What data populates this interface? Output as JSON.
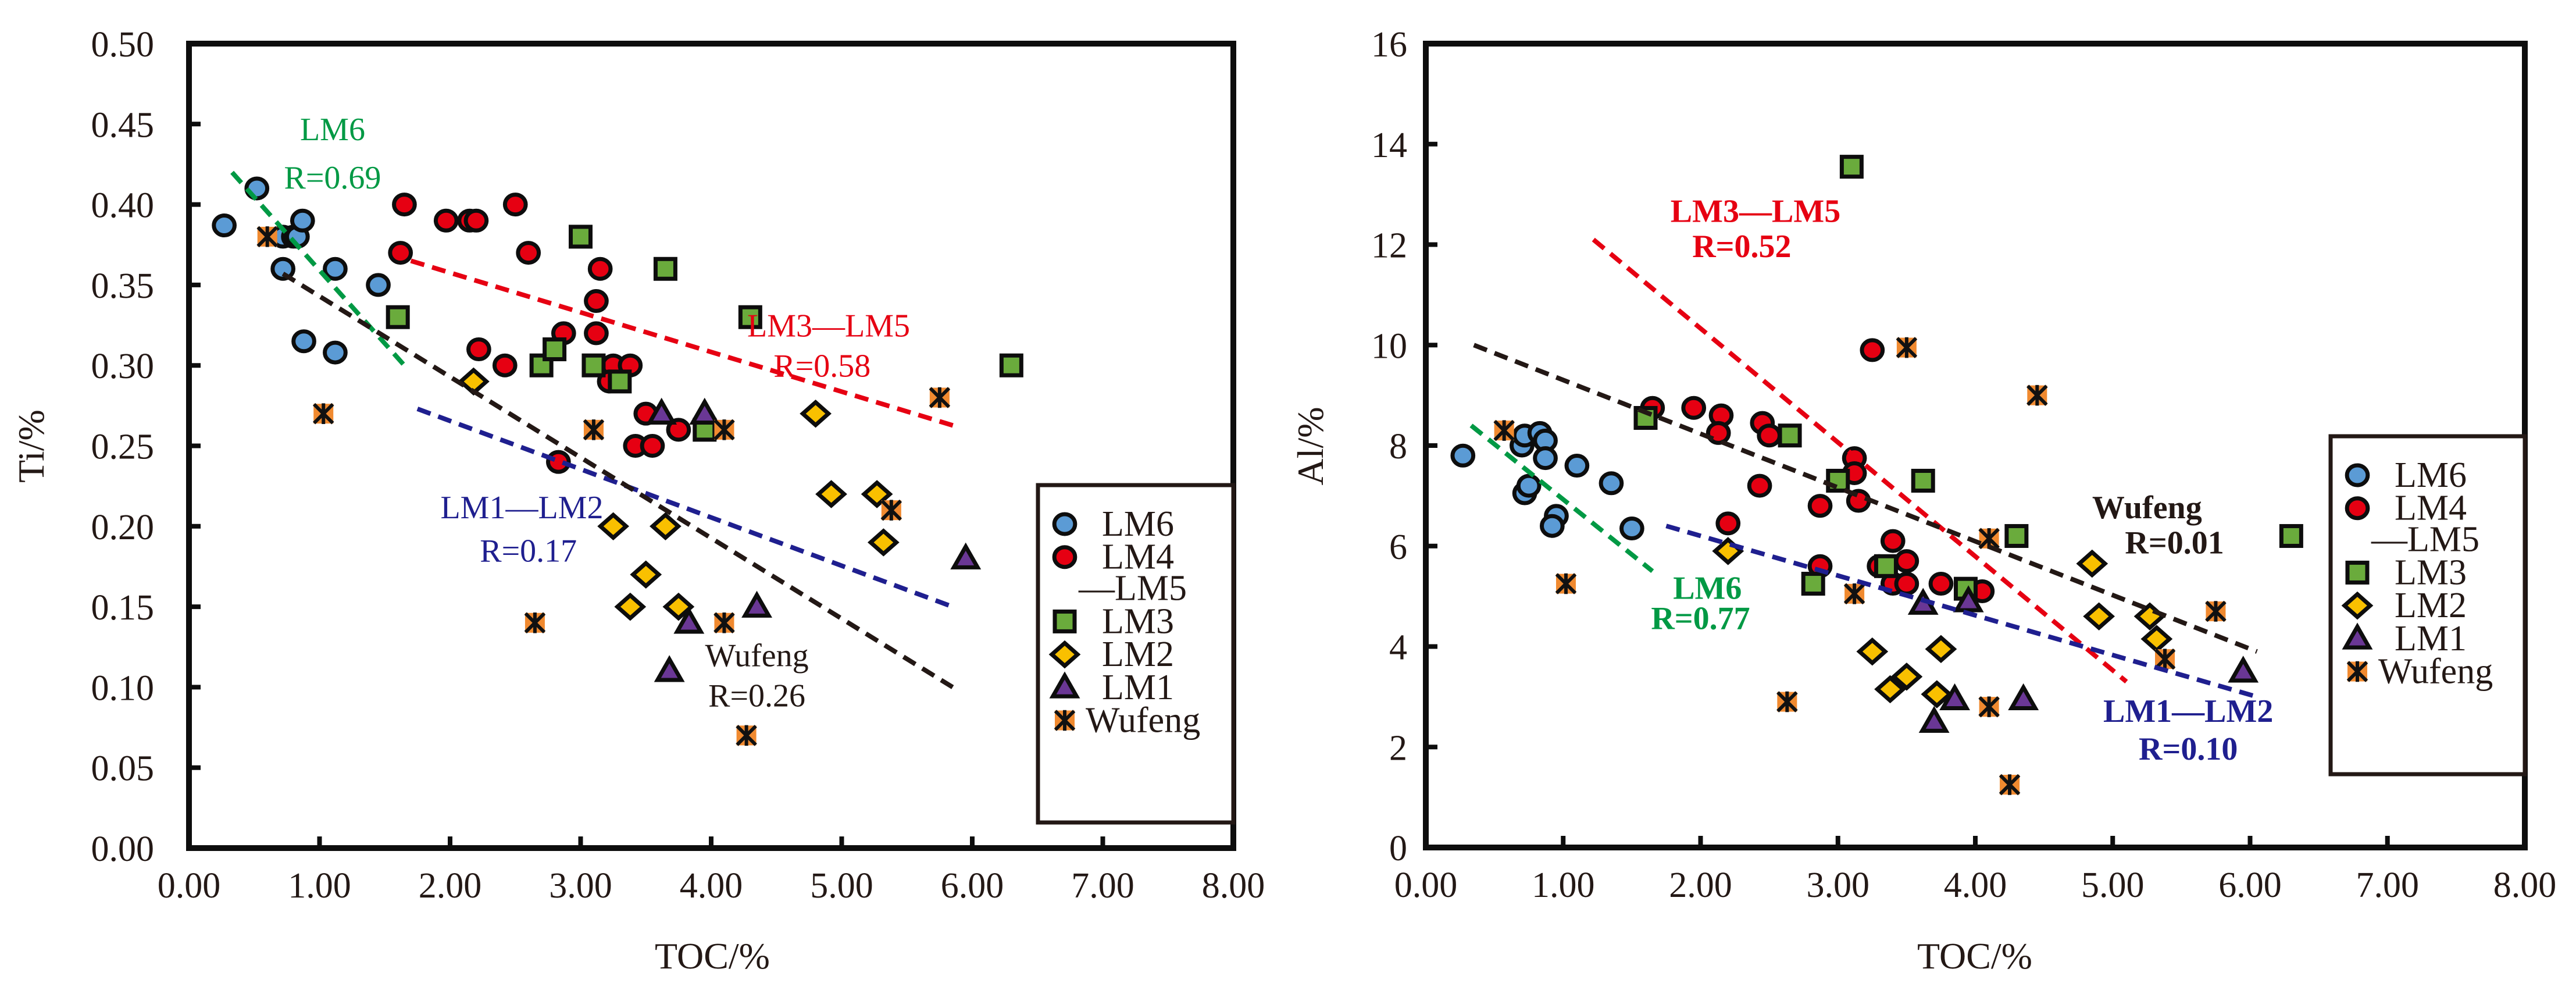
{
  "chart_data": [
    {
      "type": "scatter",
      "id": "ti",
      "xlabel": "TOC/%",
      "ylabel": "Ti/%",
      "xlim": [
        0,
        8
      ],
      "ylim": [
        0,
        0.5
      ],
      "xticks": [
        "0.00",
        "1.00",
        "2.00",
        "3.00",
        "4.00",
        "5.00",
        "6.00",
        "7.00",
        "8.00"
      ],
      "yticks": [
        "0.00",
        "0.05",
        "0.10",
        "0.15",
        "0.20",
        "0.25",
        "0.30",
        "0.35",
        "0.40",
        "0.45",
        "0.50"
      ],
      "grid": false,
      "legend_position": "bottom-right",
      "series": [
        {
          "name": "LM6",
          "legend": [
            "LM6"
          ],
          "marker": "circle",
          "color": "#5B9BD5",
          "points": [
            [
              0.27,
              0.387
            ],
            [
              0.52,
              0.41
            ],
            [
              0.72,
              0.38
            ],
            [
              0.8,
              0.38
            ],
            [
              0.83,
              0.38
            ],
            [
              0.87,
              0.39
            ],
            [
              0.72,
              0.36
            ],
            [
              1.12,
              0.36
            ],
            [
              1.45,
              0.35
            ],
            [
              0.88,
              0.315
            ],
            [
              1.12,
              0.308
            ]
          ]
        },
        {
          "name": "LM4-LM5",
          "legend": [
            "LM4",
            "—LM5"
          ],
          "marker": "circle",
          "color": "#E60012",
          "points": [
            [
              1.65,
              0.4
            ],
            [
              1.62,
              0.37
            ],
            [
              1.97,
              0.39
            ],
            [
              2.15,
              0.39
            ],
            [
              2.2,
              0.39
            ],
            [
              2.5,
              0.4
            ],
            [
              2.6,
              0.37
            ],
            [
              2.22,
              0.31
            ],
            [
              2.42,
              0.3
            ],
            [
              2.87,
              0.32
            ],
            [
              3.12,
              0.34
            ],
            [
              3.12,
              0.32
            ],
            [
              3.15,
              0.36
            ],
            [
              3.25,
              0.3
            ],
            [
              3.38,
              0.3
            ],
            [
              3.22,
              0.29
            ],
            [
              3.5,
              0.27
            ],
            [
              3.42,
              0.25
            ],
            [
              3.55,
              0.25
            ],
            [
              3.75,
              0.26
            ],
            [
              2.83,
              0.24
            ]
          ]
        },
        {
          "name": "LM3",
          "legend": [
            "LM3"
          ],
          "marker": "square",
          "color": "#6AAB3C",
          "points": [
            [
              1.6,
              0.33
            ],
            [
              3.0,
              0.38
            ],
            [
              3.65,
              0.36
            ],
            [
              4.3,
              0.33
            ],
            [
              6.3,
              0.3
            ],
            [
              2.7,
              0.3
            ],
            [
              2.8,
              0.31
            ],
            [
              3.1,
              0.3
            ],
            [
              3.3,
              0.29
            ],
            [
              3.95,
              0.26
            ]
          ]
        },
        {
          "name": "LM2",
          "legend": [
            "LM2"
          ],
          "marker": "diamond",
          "color": "#F9C000",
          "points": [
            [
              2.18,
              0.29
            ],
            [
              3.25,
              0.2
            ],
            [
              3.65,
              0.2
            ],
            [
              3.5,
              0.17
            ],
            [
              3.38,
              0.15
            ],
            [
              3.75,
              0.15
            ],
            [
              4.8,
              0.27
            ],
            [
              4.92,
              0.22
            ],
            [
              5.27,
              0.22
            ],
            [
              5.32,
              0.19
            ]
          ]
        },
        {
          "name": "LM1",
          "legend": [
            "LM1"
          ],
          "marker": "triangle",
          "color": "#6A3795",
          "points": [
            [
              3.62,
              0.27
            ],
            [
              3.95,
              0.27
            ],
            [
              3.68,
              0.11
            ],
            [
              3.83,
              0.14
            ],
            [
              4.35,
              0.15
            ],
            [
              5.95,
              0.18
            ]
          ]
        },
        {
          "name": "Wufeng",
          "legend": [
            "Wufeng"
          ],
          "marker": "asterisk",
          "color": "#F08A30",
          "points": [
            [
              0.6,
              0.38
            ],
            [
              1.03,
              0.27
            ],
            [
              3.1,
              0.26
            ],
            [
              4.1,
              0.26
            ],
            [
              2.65,
              0.14
            ],
            [
              4.1,
              0.14
            ],
            [
              4.27,
              0.07
            ],
            [
              5.38,
              0.21
            ],
            [
              5.75,
              0.28
            ]
          ]
        }
      ],
      "trendlines": [
        {
          "name": "LM6",
          "color": "#009944",
          "from": [
            0.33,
            0.42
          ],
          "to": [
            1.65,
            0.3
          ],
          "label": "LM6",
          "r_label": "R=0.69"
        },
        {
          "name": "LM3-LM5",
          "color": "#E60012",
          "from": [
            1.7,
            0.365
          ],
          "to": [
            5.88,
            0.262
          ],
          "label": "LM3—LM5",
          "r_label": "R=0.58"
        },
        {
          "name": "LM1-LM2",
          "color": "#1F1F8F",
          "from": [
            1.75,
            0.273
          ],
          "to": [
            5.85,
            0.15
          ],
          "label": "LM1—LM2",
          "r_label": "R=0.17"
        },
        {
          "name": "Wufeng",
          "color": "#231815",
          "from": [
            0.72,
            0.357
          ],
          "to": [
            5.85,
            0.1
          ],
          "label": "Wufeng",
          "r_label": "R=0.26"
        }
      ]
    },
    {
      "type": "scatter",
      "id": "al",
      "xlabel": "TOC/%",
      "ylabel": "Al/%",
      "xlim": [
        0,
        8
      ],
      "ylim": [
        0,
        16
      ],
      "xticks": [
        "0.00",
        "1.00",
        "2.00",
        "3.00",
        "4.00",
        "5.00",
        "6.00",
        "7.00",
        "8.00"
      ],
      "yticks": [
        "0",
        "2",
        "4",
        "6",
        "8",
        "10",
        "12",
        "14",
        "16"
      ],
      "grid": false,
      "legend_position": "right",
      "series": [
        {
          "name": "LM6",
          "legend": [
            "LM6"
          ],
          "marker": "circle",
          "color": "#5B9BD5",
          "points": [
            [
              0.27,
              7.8
            ],
            [
              0.7,
              8.0
            ],
            [
              0.72,
              8.2
            ],
            [
              0.83,
              8.25
            ],
            [
              0.87,
              8.1
            ],
            [
              0.87,
              7.75
            ],
            [
              0.72,
              7.05
            ],
            [
              0.75,
              7.2
            ],
            [
              0.95,
              6.6
            ],
            [
              0.92,
              6.4
            ],
            [
              1.1,
              7.6
            ],
            [
              1.35,
              7.25
            ],
            [
              1.5,
              6.35
            ]
          ]
        },
        {
          "name": "LM4-LM5",
          "legend": [
            "LM4",
            "—LM5"
          ],
          "marker": "circle",
          "color": "#E60012",
          "points": [
            [
              1.65,
              8.75
            ],
            [
              1.95,
              8.75
            ],
            [
              2.15,
              8.6
            ],
            [
              2.13,
              8.25
            ],
            [
              2.45,
              8.45
            ],
            [
              2.5,
              8.2
            ],
            [
              2.43,
              7.2
            ],
            [
              2.2,
              6.45
            ],
            [
              2.87,
              6.8
            ],
            [
              3.25,
              9.9
            ],
            [
              3.12,
              7.75
            ],
            [
              3.12,
              7.45
            ],
            [
              3.15,
              6.9
            ],
            [
              3.4,
              6.1
            ],
            [
              3.3,
              5.6
            ],
            [
              3.5,
              5.7
            ],
            [
              3.4,
              5.25
            ],
            [
              3.5,
              5.25
            ],
            [
              3.75,
              5.25
            ],
            [
              4.05,
              5.1
            ],
            [
              2.87,
              5.6
            ]
          ]
        },
        {
          "name": "LM3",
          "legend": [
            "LM3"
          ],
          "marker": "square",
          "color": "#6AAB3C",
          "points": [
            [
              1.6,
              8.55
            ],
            [
              2.65,
              8.2
            ],
            [
              3.0,
              7.3
            ],
            [
              3.1,
              13.55
            ],
            [
              3.62,
              7.3
            ],
            [
              4.3,
              6.2
            ],
            [
              6.3,
              6.2
            ],
            [
              2.82,
              5.25
            ],
            [
              3.35,
              5.6
            ],
            [
              3.93,
              5.15
            ]
          ]
        },
        {
          "name": "LM2",
          "legend": [
            "LM2"
          ],
          "marker": "diamond",
          "color": "#F9C000",
          "points": [
            [
              2.2,
              5.9
            ],
            [
              3.25,
              3.9
            ],
            [
              3.75,
              3.95
            ],
            [
              3.38,
              3.15
            ],
            [
              3.5,
              3.4
            ],
            [
              3.72,
              3.05
            ],
            [
              4.85,
              5.65
            ],
            [
              4.9,
              4.6
            ],
            [
              5.27,
              4.6
            ],
            [
              5.32,
              4.15
            ]
          ]
        },
        {
          "name": "LM1",
          "legend": [
            "LM1"
          ],
          "marker": "triangle",
          "color": "#6A3795",
          "points": [
            [
              3.62,
              4.85
            ],
            [
              3.95,
              4.9
            ],
            [
              3.7,
              2.5
            ],
            [
              3.85,
              2.95
            ],
            [
              4.35,
              2.95
            ],
            [
              5.95,
              3.5
            ]
          ]
        },
        {
          "name": "Wufeng",
          "legend": [
            "Wufeng"
          ],
          "marker": "asterisk",
          "color": "#F08A30",
          "points": [
            [
              0.57,
              8.3
            ],
            [
              1.02,
              5.25
            ],
            [
              3.5,
              9.95
            ],
            [
              4.45,
              9.0
            ],
            [
              4.1,
              6.15
            ],
            [
              3.12,
              5.05
            ],
            [
              2.63,
              2.9
            ],
            [
              4.1,
              2.8
            ],
            [
              4.25,
              1.25
            ],
            [
              5.38,
              3.75
            ],
            [
              5.75,
              4.7
            ]
          ]
        }
      ],
      "trendlines": [
        {
          "name": "LM6",
          "color": "#009944",
          "from": [
            0.33,
            8.4
          ],
          "to": [
            1.65,
            5.5
          ],
          "label": "LM6",
          "r_label": "R=0.77"
        },
        {
          "name": "LM3-LM5",
          "color": "#E60012",
          "from": [
            1.22,
            12.1
          ],
          "to": [
            5.1,
            3.3
          ],
          "label": "LM3—LM5",
          "r_label": "R=0.52"
        },
        {
          "name": "LM1-LM2",
          "color": "#1F1F8F",
          "from": [
            1.75,
            6.4
          ],
          "to": [
            6.05,
            3.0
          ],
          "label": "LM1—LM2",
          "r_label": "R=0.10"
        },
        {
          "name": "Wufeng",
          "color": "#231815",
          "from": [
            0.35,
            10.0
          ],
          "to": [
            6.05,
            3.9
          ],
          "label": "Wufeng",
          "r_label": "R=0.01"
        }
      ]
    }
  ]
}
